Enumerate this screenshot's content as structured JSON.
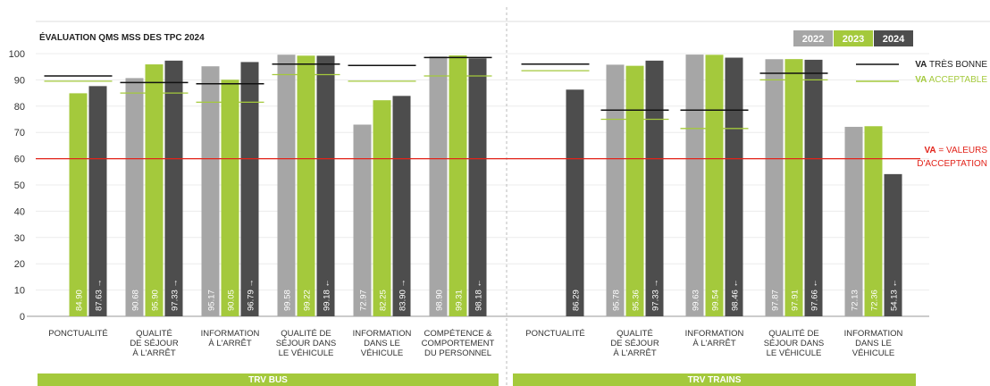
{
  "chart_data": {
    "type": "bar",
    "title": "ÉVALUATION QMS MSS DES TPC 2024",
    "ylim": [
      0,
      100
    ],
    "yticks": [
      0,
      10,
      20,
      30,
      40,
      50,
      60,
      70,
      80,
      90,
      100
    ],
    "years": [
      "2022",
      "2023",
      "2024"
    ],
    "colors": {
      "2022": "#a6a6a6",
      "2023": "#a4c93c",
      "2024": "#4d4d4d",
      "red": "#e2231a",
      "black": "#111111",
      "green": "#a4c93c"
    },
    "reference_line": {
      "value": 60,
      "label_main": "VA",
      "label_rest": " = VALEURS",
      "label_line2": "D'ACCEPTATION"
    },
    "legend": {
      "tres_bonne_main": "VA",
      "tres_bonne_rest": " TRÈS BONNE",
      "acceptable_main": "VA",
      "acceptable_rest": " ACCEPTABLE"
    },
    "groups": [
      {
        "name": "TRV BUS",
        "categories": [
          {
            "label": [
              "PONCTUALITÉ"
            ],
            "values": [
              null,
              84.9,
              87.63
            ],
            "labels": [
              "",
              "84.90",
              "87.63 →"
            ],
            "tres_bonne": 91.5,
            "acceptable": 89.5
          },
          {
            "label": [
              "QUALITÉ",
              "DE SÉJOUR",
              "À L'ARRÊT"
            ],
            "values": [
              90.68,
              95.9,
              97.33
            ],
            "labels": [
              "90.68",
              "95.90",
              "97.33 →"
            ],
            "tres_bonne": 89,
            "acceptable": 85
          },
          {
            "label": [
              "INFORMATION",
              "À L'ARRÊT"
            ],
            "values": [
              95.17,
              90.05,
              96.79
            ],
            "labels": [
              "95.17",
              "90.05",
              "96.79 →"
            ],
            "tres_bonne": 88.5,
            "acceptable": 81.5
          },
          {
            "label": [
              "QUALITÉ DE",
              "SÉJOUR DANS",
              "LE VÉHICULE"
            ],
            "values": [
              99.58,
              99.22,
              99.18
            ],
            "labels": [
              "99.58",
              "99.22",
              "99.18 ←"
            ],
            "tres_bonne": 96,
            "acceptable": 92
          },
          {
            "label": [
              "INFORMATION",
              "DANS LE",
              "VÉHICULE"
            ],
            "values": [
              72.97,
              82.25,
              83.9
            ],
            "labels": [
              "72.97",
              "82.25",
              "83.90 →"
            ],
            "tres_bonne": 95.5,
            "acceptable": 89.5
          },
          {
            "label": [
              "COMPÉTENCE &",
              "COMPORTEMENT",
              "DU PERSONNEL"
            ],
            "values": [
              98.9,
              99.31,
              98.18
            ],
            "labels": [
              "98.90",
              "99.31",
              "98.18 ←"
            ],
            "tres_bonne": 98.5,
            "acceptable": 91.5
          }
        ]
      },
      {
        "name": "TRV TRAINS",
        "categories": [
          {
            "label": [
              "PONCTUALITÉ"
            ],
            "values": [
              null,
              null,
              86.29
            ],
            "labels": [
              "",
              "",
              "86.29"
            ],
            "tres_bonne": 96,
            "acceptable": 93.5
          },
          {
            "label": [
              "QUALITÉ",
              "DE SÉJOUR",
              "À L'ARRÊT"
            ],
            "values": [
              95.78,
              95.36,
              97.33
            ],
            "labels": [
              "95.78",
              "95.36",
              "97.33 →"
            ],
            "tres_bonne": 78.5,
            "acceptable": 75
          },
          {
            "label": [
              "INFORMATION",
              "À L'ARRÊT"
            ],
            "values": [
              99.63,
              99.54,
              98.46
            ],
            "labels": [
              "99.63",
              "99.54",
              "98.46 ←"
            ],
            "tres_bonne": 78.5,
            "acceptable": 71.5
          },
          {
            "label": [
              "QUALITÉ DE",
              "SÉJOUR DANS",
              "LE VÉHICULE"
            ],
            "values": [
              97.87,
              97.91,
              97.66
            ],
            "labels": [
              "97.87",
              "97.91",
              "97.66 ←"
            ],
            "tres_bonne": 92.5,
            "acceptable": 90
          },
          {
            "label": [
              "INFORMATION",
              "DANS LE",
              "VÉHICULE"
            ],
            "values": [
              72.13,
              72.36,
              54.13
            ],
            "labels": [
              "72.13",
              "72.36",
              "54.13 ←"
            ],
            "tres_bonne": null,
            "acceptable": null
          }
        ]
      }
    ]
  }
}
